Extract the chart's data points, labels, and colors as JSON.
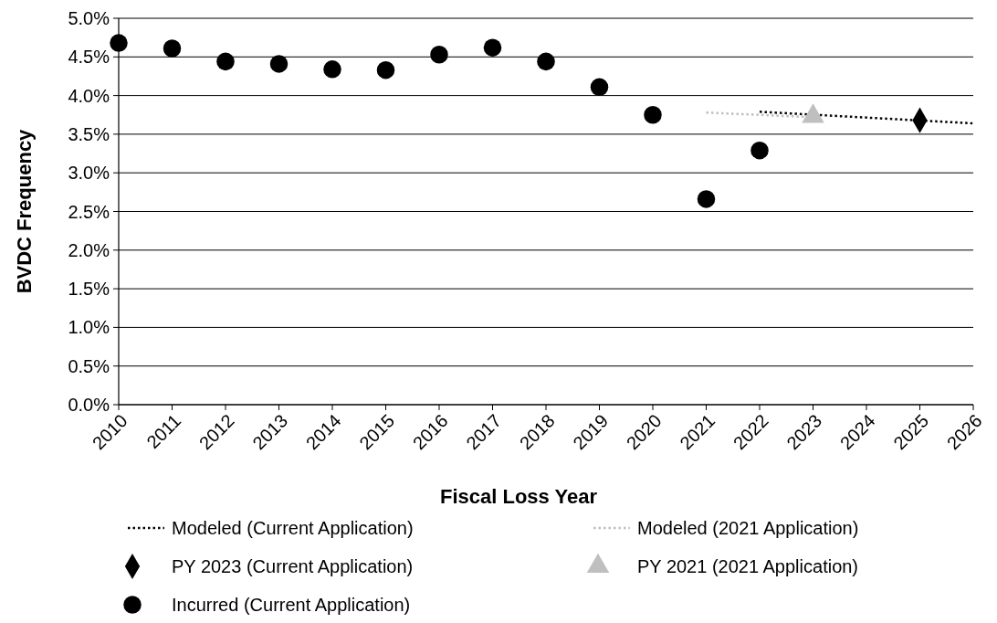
{
  "chart_data": {
    "type": "scatter",
    "xlabel": "Fiscal Loss Year",
    "ylabel": "BVDC Frequency",
    "xlim": [
      2010,
      2026
    ],
    "xticks": [
      2010,
      2011,
      2012,
      2013,
      2014,
      2015,
      2016,
      2017,
      2018,
      2019,
      2020,
      2021,
      2022,
      2023,
      2024,
      2025,
      2026
    ],
    "ylim": [
      0,
      5
    ],
    "yticks": [
      {
        "value": 0,
        "label": "0.0%"
      },
      {
        "value": 0.5,
        "label": "0.5%"
      },
      {
        "value": 1,
        "label": "1.0%"
      },
      {
        "value": 1.5,
        "label": "1.5%"
      },
      {
        "value": 2,
        "label": "2.0%"
      },
      {
        "value": 2.5,
        "label": "2.5%"
      },
      {
        "value": 3,
        "label": "3.0%"
      },
      {
        "value": 3.5,
        "label": "3.5%"
      },
      {
        "value": 4,
        "label": "4.0%"
      },
      {
        "value": 4.5,
        "label": "4.5%"
      },
      {
        "value": 5,
        "label": "5.0%"
      }
    ],
    "grid": "y",
    "legend": "bottom",
    "series": [
      {
        "name": "Modeled (Current Application)",
        "type": "line",
        "line_style": "dotted",
        "marker": "none",
        "color": "#000000",
        "x": [
          2022,
          2026
        ],
        "values": [
          3.79,
          3.64
        ]
      },
      {
        "name": "Modeled (2021 Application)",
        "type": "line",
        "line_style": "dotted",
        "marker": "none",
        "color": "#bfbfbf",
        "x": [
          2021,
          2023
        ],
        "values": [
          3.78,
          3.72
        ]
      },
      {
        "name": "PY 2023 (Current Application)",
        "marker": "diamond",
        "color": "#000000",
        "x": [
          2025
        ],
        "values": [
          3.68
        ]
      },
      {
        "name": "PY 2021 (2021 Application)",
        "marker": "triangle",
        "color": "#bfbfbf",
        "x": [
          2023
        ],
        "values": [
          3.73
        ]
      },
      {
        "name": "Incurred (Current Application)",
        "marker": "circle",
        "color": "#000000",
        "x": [
          2010,
          2011,
          2012,
          2013,
          2014,
          2015,
          2016,
          2017,
          2018,
          2019,
          2020,
          2021,
          2022
        ],
        "values": [
          4.68,
          4.61,
          4.44,
          4.41,
          4.34,
          4.33,
          4.53,
          4.62,
          4.44,
          4.11,
          3.75,
          2.66,
          3.29
        ]
      }
    ]
  }
}
